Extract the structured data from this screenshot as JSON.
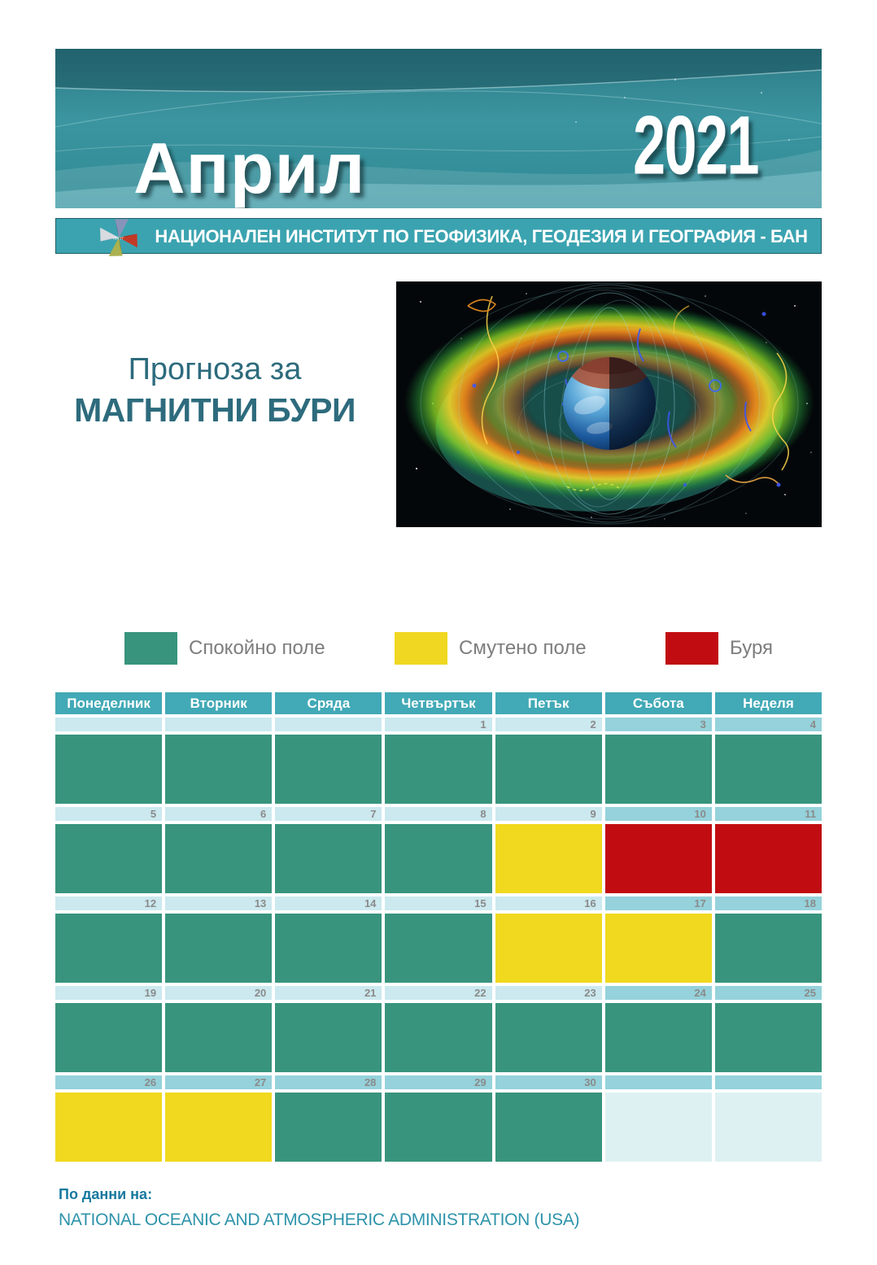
{
  "banner": {
    "month": "Април",
    "year": "2021"
  },
  "institute": {
    "name": "НАЦИОНАЛЕН ИНСТИТУТ ПО ГЕОФИЗИКА, ГЕОДЕЗИЯ И ГЕОГРАФИЯ - БАН",
    "logo": "pinwheel-star-logo"
  },
  "title": {
    "line1": "Прогноза за",
    "line2": "МАГНИТНИ БУРИ"
  },
  "hero_image": {
    "description": "earth-magnetosphere-with-radiation-belts"
  },
  "legend": {
    "items": [
      {
        "key": "calm",
        "label": "Спокойно поле",
        "color": "#38947d"
      },
      {
        "key": "disturbed",
        "label": "Смутено поле",
        "color": "#f0d722"
      },
      {
        "key": "storm",
        "label": "Буря",
        "color": "#c10d12"
      }
    ]
  },
  "calendar": {
    "weekdays": [
      "Понеделник",
      "Вторник",
      "Сряда",
      "Четвъртък",
      "Петък",
      "Събота",
      "Неделя"
    ],
    "weeks": [
      {
        "dates": [
          "",
          "",
          "",
          "1",
          "2",
          "3",
          "4"
        ],
        "strip": [
          "light",
          "light",
          "light",
          "light",
          "light",
          "dark",
          "dark"
        ],
        "states": [
          "calm",
          "calm",
          "calm",
          "calm",
          "calm",
          "calm",
          "calm"
        ]
      },
      {
        "dates": [
          "5",
          "6",
          "7",
          "8",
          "9",
          "10",
          "11"
        ],
        "strip": [
          "light",
          "light",
          "light",
          "light",
          "light",
          "dark",
          "dark"
        ],
        "states": [
          "calm",
          "calm",
          "calm",
          "calm",
          "disturbed",
          "storm",
          "storm"
        ]
      },
      {
        "dates": [
          "12",
          "13",
          "14",
          "15",
          "16",
          "17",
          "18"
        ],
        "strip": [
          "light",
          "light",
          "light",
          "light",
          "light",
          "dark",
          "dark"
        ],
        "states": [
          "calm",
          "calm",
          "calm",
          "calm",
          "disturbed",
          "disturbed",
          "calm"
        ]
      },
      {
        "dates": [
          "19",
          "20",
          "21",
          "22",
          "23",
          "24",
          "25"
        ],
        "strip": [
          "light",
          "light",
          "light",
          "light",
          "light",
          "dark",
          "dark"
        ],
        "states": [
          "calm",
          "calm",
          "calm",
          "calm",
          "calm",
          "calm",
          "calm"
        ]
      },
      {
        "dates": [
          "26",
          "27",
          "28",
          "29",
          "30",
          "",
          ""
        ],
        "strip": [
          "dark",
          "dark",
          "dark",
          "dark",
          "dark",
          "dark",
          "dark"
        ],
        "states": [
          "disturbed",
          "disturbed",
          "calm",
          "calm",
          "calm",
          "none",
          "none"
        ]
      }
    ]
  },
  "footer": {
    "label": "По данни на:",
    "source": "NATIONAL OCEANIC AND ATMOSPHERIC ADMINISTRATION (USA)"
  },
  "colors": {
    "states": {
      "calm": "#38947d",
      "disturbed": "#f0d91e",
      "storm": "#c10d12",
      "none": "#def1f2"
    },
    "strip": {
      "light": "#cbe9ef",
      "dark": "#95d2db"
    },
    "header_bg": "#42a9b6",
    "banner_teal": "#3b95a0",
    "institute_bar": "#3ba3b0",
    "title_text": "#2d6b7d"
  }
}
